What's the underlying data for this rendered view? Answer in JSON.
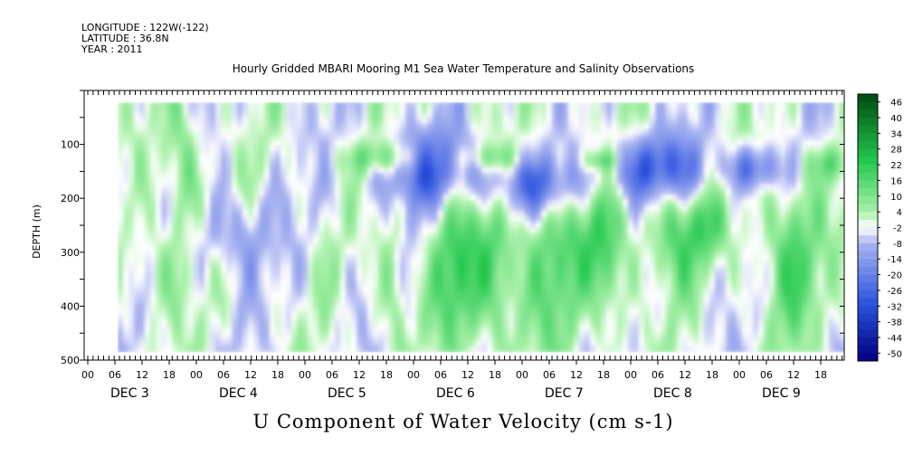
{
  "header": {
    "longitude": "LONGITUDE : 122W(-122)",
    "latitude": "LATITUDE : 36.8N",
    "year": "YEAR : 2011"
  },
  "chart_data": {
    "type": "heatmap",
    "title": "Hourly Gridded MBARI Mooring M1 Sea Water Temperature and Salinity Observations",
    "variable_title": "U Component of Water Velocity (cm s-1)",
    "ylabel": "DEPTH (m)",
    "y_reversed": true,
    "ylim": [
      500,
      0
    ],
    "y_ticks": [
      100,
      200,
      300,
      400,
      500
    ],
    "x_hour_ticks": [
      "00",
      "06",
      "12",
      "18",
      "00",
      "06",
      "12",
      "18",
      "00",
      "06",
      "12",
      "18",
      "00",
      "06",
      "12",
      "18",
      "00",
      "06",
      "12",
      "18",
      "00",
      "06",
      "12",
      "18",
      "00",
      "06",
      "12",
      "18"
    ],
    "x_day_labels": [
      "DEC 3",
      "DEC 4",
      "DEC 5",
      "DEC 6",
      "DEC 7",
      "DEC 8",
      "DEC 9"
    ],
    "colorbar": {
      "labels": [
        "46",
        "40",
        "34",
        "28",
        "22",
        "16",
        "10",
        "4",
        "-2",
        "-8",
        "-14",
        "-20",
        "-26",
        "-32",
        "-38",
        "-44",
        "-50"
      ],
      "range": [
        -50,
        50
      ]
    },
    "colors": {
      "neg_strong": "#000080",
      "neg_mid": "#2d55e0",
      "neg_weak": "#aab4f0",
      "near_zero": "#ffffff",
      "pos_weak": "#a8f0a8",
      "pos_mid": "#22c84e",
      "pos_strong": "#004a10"
    }
  }
}
